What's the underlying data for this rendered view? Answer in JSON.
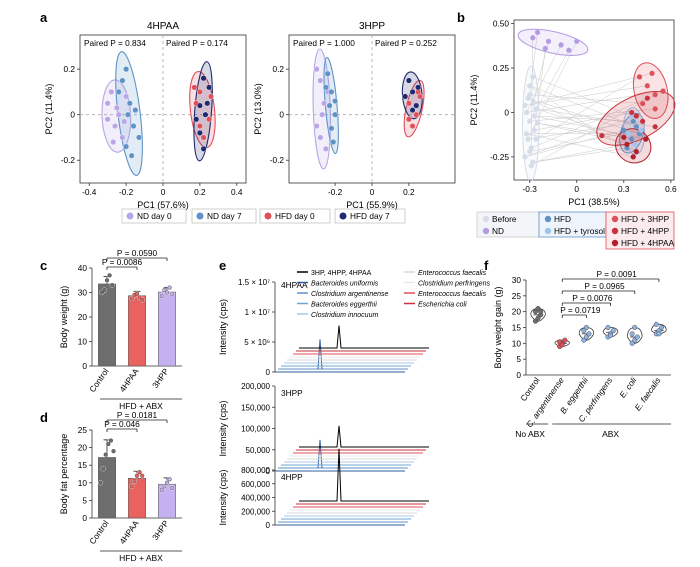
{
  "figure": {
    "panel_letters": [
      "a",
      "b",
      "c",
      "d",
      "e",
      "f"
    ],
    "colors": {
      "nd0": "#b9a6e6",
      "nd7": "#5f93c8",
      "hfd0": "#e0505a",
      "hfd7": "#1f2a6e",
      "before": "#d4dde9",
      "nd": "#b59be4",
      "hfd": "#5f93c8",
      "hfdTyr": "#9fc6ea",
      "hfd3hpp": "#e0505a",
      "hfd4hpp": "#c9323d",
      "hfd4hpaa": "#b3202c",
      "control": "#6e6e6e",
      "c4hpaa": "#e8625f",
      "c3hpp": "#c5b1ef",
      "exp": "#8fb2e0"
    }
  },
  "chart_data": [
    {
      "id": "a-4hpaa",
      "type": "scatter",
      "title": "4HPAA",
      "xlabel": "PC1 (57.6%)",
      "ylabel": "PC2 (11.4%)",
      "xlim": [
        -0.45,
        0.45
      ],
      "ylim": [
        -0.3,
        0.35
      ],
      "xticks": [
        "-0.4",
        "-0.2",
        "0",
        "0.2",
        "0.4"
      ],
      "yticks": [
        "0.2",
        "0",
        "-0.2"
      ],
      "annotations": [
        "Paired P = 0.834",
        "Paired P = 0.174"
      ],
      "series": [
        {
          "name": "ND day 0",
          "color": "#b9a6e6",
          "points": [
            [
              -0.28,
              0.1
            ],
            [
              -0.25,
              0.03
            ],
            [
              -0.3,
              -0.02
            ],
            [
              -0.22,
              -0.1
            ],
            [
              -0.26,
              -0.05
            ],
            [
              -0.2,
              0.08
            ],
            [
              -0.24,
              0.0
            ],
            [
              -0.3,
              0.05
            ],
            [
              -0.27,
              -0.12
            ],
            [
              -0.21,
              -0.03
            ]
          ]
        },
        {
          "name": "ND day 7",
          "color": "#5f93c8",
          "points": [
            [
              -0.22,
              0.15
            ],
            [
              -0.18,
              0.05
            ],
            [
              -0.16,
              -0.05
            ],
            [
              -0.2,
              -0.14
            ],
            [
              -0.15,
              0.02
            ],
            [
              -0.2,
              0.2
            ],
            [
              -0.13,
              -0.1
            ],
            [
              -0.24,
              0.1
            ],
            [
              -0.17,
              -0.18
            ],
            [
              -0.19,
              0.0
            ]
          ]
        },
        {
          "name": "HFD day 0",
          "color": "#e0505a",
          "points": [
            [
              0.2,
              0.1
            ],
            [
              0.23,
              0.0
            ],
            [
              0.2,
              -0.05
            ],
            [
              0.26,
              0.08
            ],
            [
              0.18,
              0.05
            ],
            [
              0.22,
              -0.1
            ],
            [
              0.17,
              0.12
            ],
            [
              0.25,
              -0.02
            ]
          ]
        },
        {
          "name": "HFD day 7",
          "color": "#1f2a6e",
          "points": [
            [
              0.22,
              0.16
            ],
            [
              0.2,
              0.04
            ],
            [
              0.25,
              0.12
            ],
            [
              0.2,
              -0.08
            ],
            [
              0.22,
              -0.15
            ],
            [
              0.24,
              0.05
            ],
            [
              0.18,
              -0.02
            ],
            [
              0.23,
              0.0
            ]
          ]
        }
      ]
    },
    {
      "id": "a-3hpp",
      "type": "scatter",
      "title": "3HPP",
      "xlabel": "PC1 (55.9%)",
      "ylabel": "PC2 (13.0%)",
      "xlim": [
        -0.45,
        0.45
      ],
      "ylim": [
        -0.3,
        0.35
      ],
      "xticks": [
        "-0.2",
        "0",
        "0.2"
      ],
      "yticks": [
        "0.2",
        "0",
        "-0.2"
      ],
      "annotations": [
        "Paired P = 1.000",
        "Paired P = 0.252"
      ],
      "series": [
        {
          "name": "ND day 0",
          "color": "#b9a6e6",
          "points": [
            [
              -0.28,
              0.15
            ],
            [
              -0.26,
              0.05
            ],
            [
              -0.3,
              -0.05
            ],
            [
              -0.25,
              -0.15
            ],
            [
              -0.27,
              0.0
            ],
            [
              -0.28,
              -0.1
            ],
            [
              -0.24,
              0.1
            ],
            [
              -0.3,
              0.2
            ]
          ]
        },
        {
          "name": "ND day 7",
          "color": "#5f93c8",
          "points": [
            [
              -0.24,
              0.18
            ],
            [
              -0.22,
              0.1
            ],
            [
              -0.2,
              0.0
            ],
            [
              -0.22,
              -0.06
            ],
            [
              -0.2,
              0.06
            ],
            [
              -0.25,
              0.12
            ],
            [
              -0.21,
              -0.12
            ],
            [
              -0.23,
              0.04
            ]
          ]
        },
        {
          "name": "HFD day 0",
          "color": "#e0505a",
          "points": [
            [
              0.2,
              0.05
            ],
            [
              0.24,
              0.0
            ],
            [
              0.22,
              -0.05
            ],
            [
              0.26,
              0.08
            ],
            [
              0.2,
              -0.02
            ],
            [
              0.25,
              0.1
            ]
          ]
        },
        {
          "name": "HFD day 7",
          "color": "#1f2a6e",
          "points": [
            [
              0.2,
              0.15
            ],
            [
              0.22,
              0.1
            ],
            [
              0.25,
              0.12
            ],
            [
              0.18,
              0.08
            ],
            [
              0.24,
              0.04
            ],
            [
              0.22,
              0.02
            ]
          ]
        }
      ]
    },
    {
      "id": "b",
      "type": "scatter",
      "xlabel": "PC1 (38.5%)",
      "ylabel": "PC2 (11.4%)",
      "xlim": [
        -0.4,
        0.62
      ],
      "ylim": [
        -0.38,
        0.52
      ],
      "xticks": [
        "-0.3",
        "0",
        "0.3",
        "0.6"
      ],
      "yticks": [
        "0.50",
        "0.25",
        "0",
        "-0.25"
      ],
      "series": [
        {
          "name": "Before",
          "color": "#d4dde9",
          "points": [
            [
              -0.3,
              0.1
            ],
            [
              -0.28,
              0.05
            ],
            [
              -0.32,
              0.0
            ],
            [
              -0.3,
              -0.05
            ],
            [
              -0.27,
              -0.1
            ],
            [
              -0.31,
              -0.15
            ],
            [
              -0.29,
              -0.2
            ],
            [
              -0.33,
              -0.25
            ],
            [
              -0.26,
              0.02
            ],
            [
              -0.3,
              0.15
            ],
            [
              -0.28,
              -0.28
            ],
            [
              -0.31,
              0.08
            ],
            [
              -0.27,
              -0.02
            ],
            [
              -0.32,
              -0.12
            ],
            [
              -0.25,
              -0.06
            ],
            [
              -0.3,
              -0.22
            ],
            [
              -0.28,
              0.2
            ],
            [
              -0.26,
              -0.15
            ],
            [
              -0.33,
              0.04
            ],
            [
              -0.29,
              -0.3
            ]
          ]
        },
        {
          "name": "ND",
          "color": "#b59be4",
          "points": [
            [
              -0.25,
              0.45
            ],
            [
              -0.18,
              0.4
            ],
            [
              -0.1,
              0.38
            ],
            [
              -0.05,
              0.35
            ],
            [
              -0.2,
              0.36
            ],
            [
              0.0,
              0.4
            ],
            [
              -0.28,
              0.42
            ]
          ]
        },
        {
          "name": "HFD",
          "color": "#5f93c8",
          "points": [
            [
              0.3,
              -0.1
            ],
            [
              0.35,
              -0.15
            ],
            [
              0.38,
              -0.08
            ],
            [
              0.32,
              -0.2
            ],
            [
              0.4,
              -0.12
            ],
            [
              0.36,
              -0.05
            ]
          ]
        },
        {
          "name": "HFD + tyrosol",
          "color": "#9fc6ea",
          "points": [
            [
              0.33,
              -0.12
            ],
            [
              0.37,
              -0.18
            ],
            [
              0.41,
              -0.1
            ],
            [
              0.35,
              -0.02
            ]
          ]
        },
        {
          "name": "HFD + 3HPP",
          "color": "#e0505a",
          "points": [
            [
              0.4,
              0.2
            ],
            [
              0.45,
              0.15
            ],
            [
              0.5,
              0.1
            ],
            [
              0.42,
              0.05
            ],
            [
              0.48,
              0.22
            ],
            [
              0.55,
              0.12
            ],
            [
              0.5,
              0.02
            ]
          ]
        },
        {
          "name": "HFD + 4HPP",
          "color": "#c9323d",
          "points": [
            [
              0.35,
              0.0
            ],
            [
              0.42,
              -0.05
            ],
            [
              0.45,
              0.08
            ],
            [
              0.38,
              -0.02
            ],
            [
              0.5,
              -0.08
            ],
            [
              0.16,
              -0.13
            ]
          ]
        },
        {
          "name": "HFD + 4HPAA",
          "color": "#b3202c",
          "points": [
            [
              0.32,
              -0.18
            ],
            [
              0.38,
              -0.22
            ],
            [
              0.44,
              -0.15
            ],
            [
              0.36,
              -0.25
            ],
            [
              0.3,
              -0.14
            ]
          ]
        }
      ]
    },
    {
      "id": "c",
      "type": "bar",
      "ylabel": "Body weight (g)",
      "ylim": [
        0,
        40
      ],
      "yticks": [
        "0",
        "10",
        "20",
        "30",
        "40"
      ],
      "categories": [
        "Control",
        "4HPAA",
        "3HPP"
      ],
      "values": [
        33.5,
        28.7,
        30.2
      ],
      "errors": [
        3.0,
        1.8,
        1.9
      ],
      "points": [
        [
          30,
          31,
          35,
          37,
          33
        ],
        [
          27.5,
          29,
          29.5,
          28,
          27
        ],
        [
          28.5,
          31,
          30,
          32,
          29.5
        ]
      ],
      "group_label": "HFD + ABX",
      "pvalues": [
        {
          "from": 0,
          "to": 2,
          "label": "P = 0.0590"
        },
        {
          "from": 0,
          "to": 1,
          "label": "P = 0.0086"
        }
      ]
    },
    {
      "id": "d",
      "type": "bar",
      "ylabel": "Body fat percentage",
      "ylim": [
        0,
        25
      ],
      "yticks": [
        "0",
        "5",
        "10",
        "15",
        "20",
        "25"
      ],
      "categories": [
        "Control",
        "4HPAA",
        "3HPP"
      ],
      "values": [
        17.2,
        11.3,
        9.6
      ],
      "errors": [
        5.0,
        2.0,
        1.8
      ],
      "points": [
        [
          10,
          14,
          18,
          21,
          22,
          19
        ],
        [
          9,
          10.5,
          12,
          13,
          12
        ],
        [
          8,
          9,
          10,
          11,
          8.5
        ]
      ],
      "group_label": "HFD + ABX",
      "pvalues": [
        {
          "from": 0,
          "to": 2,
          "label": "P = 0.0181"
        },
        {
          "from": 0,
          "to": 1,
          "label": "P = 0.046"
        }
      ]
    },
    {
      "id": "e",
      "type": "line",
      "ylabel": "Intensity (cps)",
      "panels": [
        {
          "label": "4HPAA",
          "yticks": [
            "0",
            "5 × 10⁶",
            "1 × 10⁷",
            "1.5 × 10⁷"
          ]
        },
        {
          "label": "3HPP",
          "yticks": [
            "0",
            "50,000",
            "100,000",
            "150,000",
            "200,000"
          ]
        },
        {
          "label": "4HPP",
          "yticks": [
            "0",
            "200,000",
            "400,000",
            "600,000",
            "800,000"
          ]
        }
      ],
      "legend": [
        {
          "name": "3HP, 4HPP, 4HPAA",
          "color": "#000000"
        },
        {
          "name": "Bacteroides uniformis",
          "color": "#2f5f9e"
        },
        {
          "name": "Clostridium argentinense",
          "color": "#5f93c8"
        },
        {
          "name": "Bacteroides eggerthii",
          "color": "#6da7d8"
        },
        {
          "name": "Clostridium innocuum",
          "color": "#a9c8e8"
        },
        {
          "name": "Enterococcus faecalis",
          "color": "#d8d8d8"
        },
        {
          "name": "Clostridium perfringens",
          "color": "#e8e8e8"
        },
        {
          "name": "Enterococcus faecalis",
          "color": "#e0505a"
        },
        {
          "name": "Escherichia coli",
          "color": "#c9323d"
        }
      ]
    },
    {
      "id": "f",
      "type": "violin",
      "ylabel": "Body weight gain (g)",
      "ylim": [
        0,
        30
      ],
      "yticks": [
        "0",
        "5",
        "10",
        "15",
        "20",
        "25",
        "30"
      ],
      "categories": [
        "Control",
        "C. argentinense",
        "B. eggerthii",
        "C. perfringens",
        "E. coli",
        "E. faecalis"
      ],
      "medians": [
        19,
        10,
        13,
        13.5,
        12,
        14
      ],
      "points": [
        [
          17,
          18,
          19,
          20,
          21,
          20
        ],
        [
          9,
          10,
          11,
          10.5,
          9.5
        ],
        [
          11,
          12,
          13,
          14,
          15
        ],
        [
          12,
          13,
          14,
          15,
          12.5
        ],
        [
          10,
          11,
          12,
          13,
          15
        ],
        [
          13,
          14,
          15,
          16,
          13
        ]
      ],
      "colors": [
        "#6e6e6e",
        "#e0505a",
        "#8fb2e0",
        "#8fb2e0",
        "#8fb2e0",
        "#8fb2e0"
      ],
      "group_labels": {
        "no_abx": "No ABX",
        "abx": "ABX"
      },
      "pvalues": [
        {
          "from": 1,
          "to": 5,
          "label": "P = 0.0091"
        },
        {
          "from": 1,
          "to": 4,
          "label": "P = 0.0965"
        },
        {
          "from": 1,
          "to": 3,
          "label": "P = 0.0076"
        },
        {
          "from": 1,
          "to": 2,
          "label": "P = 0.0719"
        }
      ]
    }
  ],
  "legend_a": [
    {
      "name": "ND day 0",
      "color": "#b9a6e6"
    },
    {
      "name": "ND day 7",
      "color": "#5f93c8"
    },
    {
      "name": "HFD day 0",
      "color": "#e0505a"
    },
    {
      "name": "HFD day 7",
      "color": "#1f2a6e"
    }
  ],
  "legend_b": [
    {
      "name": "Before",
      "color": "#d4dde9"
    },
    {
      "name": "ND",
      "color": "#b59be4"
    },
    {
      "name": "HFD",
      "color": "#5f93c8"
    },
    {
      "name": "HFD + tyrosol",
      "color": "#9fc6ea"
    },
    {
      "name": "HFD + 3HPP",
      "color": "#e0505a"
    },
    {
      "name": "HFD + 4HPP",
      "color": "#c9323d"
    },
    {
      "name": "HFD + 4HPAA",
      "color": "#b3202c"
    }
  ]
}
